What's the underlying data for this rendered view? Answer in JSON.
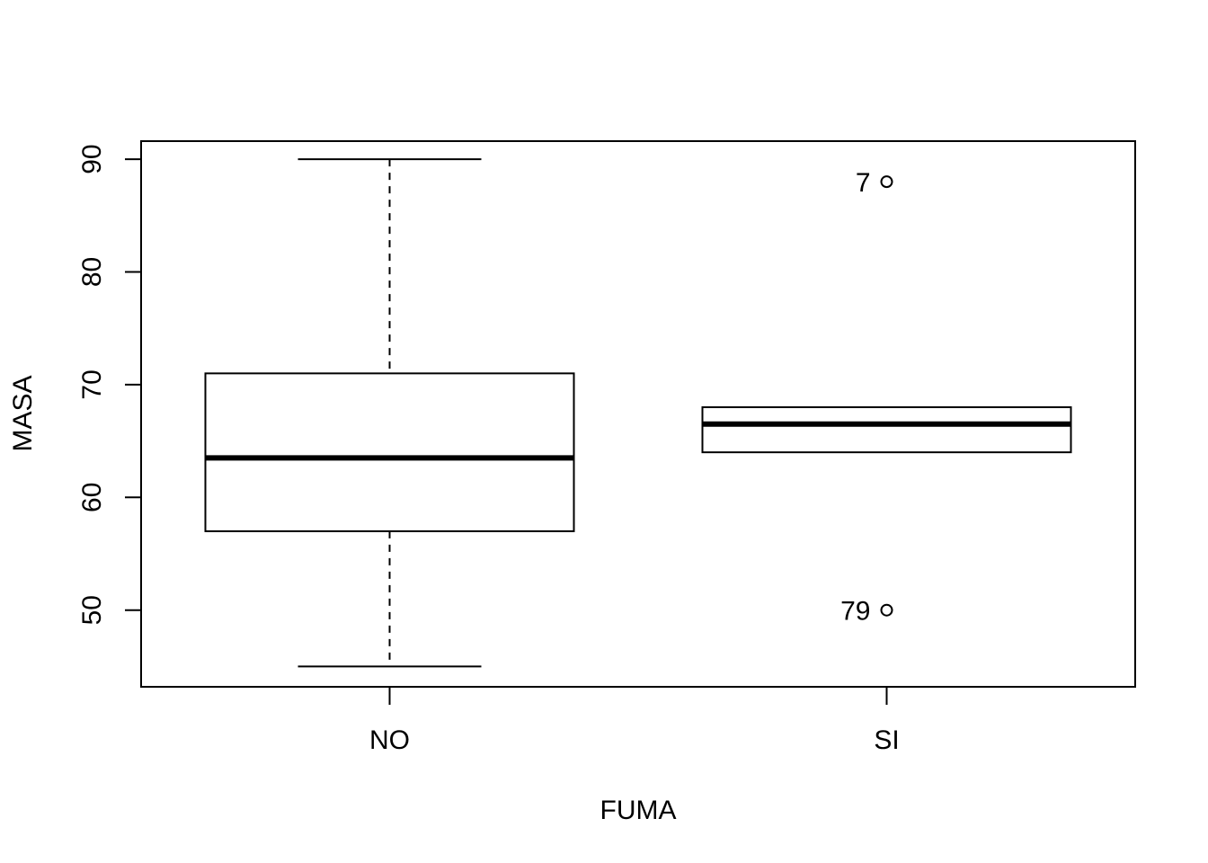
{
  "chart_data": {
    "type": "boxplot",
    "title": "",
    "xlabel": "FUMA",
    "ylabel": "MASA",
    "ylim": [
      43.2,
      91.6
    ],
    "yticks": [
      50,
      60,
      70,
      80,
      90
    ],
    "categories": [
      "NO",
      "SI"
    ],
    "boxes": [
      {
        "category": "NO",
        "whisker_low": 45,
        "q1": 57,
        "median": 63.5,
        "q3": 71,
        "whisker_high": 90,
        "outliers": []
      },
      {
        "category": "SI",
        "whisker_low": 64,
        "q1": 64,
        "median": 66.5,
        "q3": 68,
        "whisker_high": 68,
        "outliers": [
          {
            "value": 88,
            "label": "7"
          },
          {
            "value": 50,
            "label": "79"
          }
        ]
      }
    ],
    "grid": false,
    "legend": "none",
    "colors": {
      "line": "#000000",
      "background": "#ffffff"
    }
  }
}
